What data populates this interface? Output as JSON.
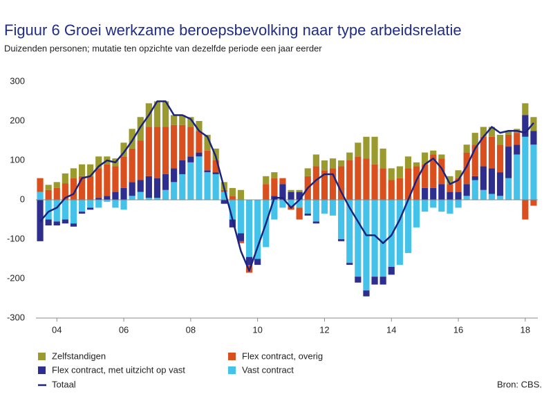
{
  "chart_data": {
    "type": "bar-line",
    "title": "Figuur 6  Groei werkzame beroepsbevolking naar type arbeidsrelatie",
    "subtitle": "Duizenden personen; mutatie ten opzichte van dezelfde periode een jaar eerder",
    "source": "Bron: CBS.",
    "categories": [
      null,
      null,
      "04",
      null,
      null,
      null,
      null,
      null,
      null,
      null,
      "06",
      null,
      null,
      null,
      null,
      null,
      null,
      null,
      "08",
      null,
      null,
      null,
      null,
      null,
      null,
      null,
      "10",
      null,
      null,
      null,
      null,
      null,
      null,
      null,
      "12",
      null,
      null,
      null,
      null,
      null,
      null,
      null,
      "14",
      null,
      null,
      null,
      null,
      null,
      null,
      null,
      "16",
      null,
      null,
      null,
      null,
      null,
      null,
      null,
      "18",
      null
    ],
    "ylim": [
      -300,
      300
    ],
    "yticks": [
      -300,
      -200,
      -100,
      0,
      100,
      200,
      300
    ],
    "grid": false,
    "series": [
      {
        "name": "Vast contract",
        "color": "#45c2ea",
        "values": [
          20,
          -50,
          -55,
          -50,
          -60,
          -30,
          -20,
          -20,
          -5,
          -20,
          -25,
          10,
          20,
          5,
          5,
          25,
          45,
          65,
          95,
          110,
          70,
          65,
          20,
          -50,
          -85,
          -145,
          -150,
          -120,
          -50,
          -20,
          -15,
          -20,
          -35,
          -55,
          -35,
          -40,
          -100,
          -160,
          -195,
          -230,
          -195,
          -195,
          -170,
          -165,
          -135,
          -70,
          -30,
          -20,
          -30,
          -35,
          -20,
          10,
          50,
          25,
          15,
          10,
          55,
          115,
          160,
          140
        ]
      },
      {
        "name": "Flex contract, met uitzicht op vast",
        "color": "#2e2e8e",
        "values": [
          -105,
          -15,
          -10,
          -10,
          -8,
          -5,
          -5,
          5,
          10,
          20,
          30,
          35,
          30,
          55,
          50,
          40,
          35,
          35,
          15,
          10,
          5,
          5,
          -10,
          -20,
          -20,
          -20,
          -15,
          0,
          10,
          40,
          20,
          20,
          -5,
          -5,
          0,
          0,
          -5,
          -5,
          -15,
          -15,
          -20,
          -20,
          -20,
          0,
          0,
          0,
          30,
          30,
          40,
          20,
          20,
          30,
          10,
          60,
          65,
          60,
          80,
          25,
          55,
          35
        ]
      },
      {
        "name": "Flex contract, overig",
        "color": "#d9501e",
        "values": [
          35,
          25,
          30,
          42,
          55,
          60,
          60,
          75,
          80,
          65,
          80,
          85,
          100,
          125,
          130,
          120,
          110,
          90,
          75,
          55,
          50,
          30,
          5,
          10,
          -5,
          -20,
          0,
          40,
          45,
          15,
          -10,
          -30,
          60,
          85,
          75,
          80,
          85,
          100,
          110,
          105,
          90,
          80,
          50,
          55,
          80,
          85,
          60,
          85,
          65,
          20,
          35,
          80,
          80,
          75,
          80,
          70,
          30,
          30,
          -50,
          -15
        ]
      },
      {
        "name": "Zelfstandigen",
        "color": "#9a9a2e",
        "values": [
          0,
          13,
          15,
          25,
          25,
          30,
          30,
          30,
          20,
          20,
          35,
          50,
          60,
          60,
          65,
          65,
          25,
          25,
          25,
          25,
          40,
          30,
          20,
          20,
          25,
          0,
          0,
          20,
          15,
          0,
          5,
          5,
          20,
          30,
          25,
          25,
          15,
          20,
          35,
          55,
          70,
          50,
          30,
          30,
          30,
          10,
          30,
          10,
          10,
          20,
          20,
          20,
          30,
          25,
          25,
          25,
          10,
          10,
          30,
          35
        ]
      },
      {
        "name": "Totaal",
        "color": "#1a237e",
        "type": "line",
        "values": [
          -55,
          -30,
          -20,
          5,
          15,
          55,
          60,
          85,
          100,
          95,
          120,
          150,
          185,
          215,
          250,
          250,
          215,
          215,
          205,
          175,
          160,
          110,
          30,
          -50,
          -130,
          -180,
          -120,
          -60,
          5,
          5,
          -20,
          0,
          30,
          50,
          65,
          65,
          20,
          -20,
          -55,
          -90,
          -90,
          -110,
          -90,
          -50,
          0,
          50,
          90,
          105,
          80,
          40,
          50,
          85,
          130,
          160,
          185,
          170,
          175,
          175,
          170,
          195
        ]
      }
    ],
    "legend_order": [
      3,
      2,
      1,
      0,
      4
    ]
  }
}
